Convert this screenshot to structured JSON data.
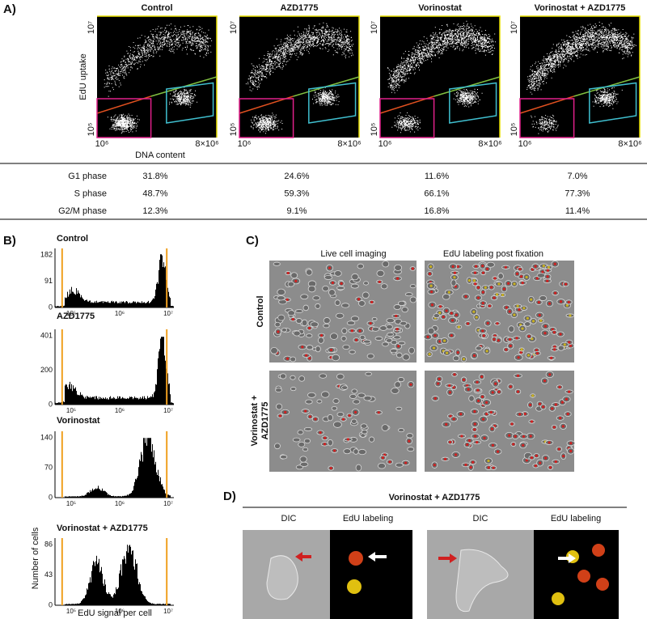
{
  "panel_a": {
    "label": "A)",
    "plots": [
      {
        "title": "Control"
      },
      {
        "title": "AZD1775"
      },
      {
        "title": "Vorinostat"
      },
      {
        "title": "Vorinostat + AZD1775"
      }
    ],
    "y_axis_label": "EdU uptake",
    "y_ticks": [
      "10⁷",
      "10⁵"
    ],
    "x_ticks": [
      "10⁶",
      "8×10⁶"
    ],
    "x_axis_label": "DNA content",
    "table": {
      "rows": [
        [
          "G1 phase",
          "31.8%",
          "24.6%",
          "11.6%",
          "7.0%"
        ],
        [
          "S phase",
          "48.7%",
          "59.3%",
          "66.1%",
          "77.3%"
        ],
        [
          "G2/M phase",
          "12.3%",
          "9.1%",
          "16.8%",
          "11.4%"
        ]
      ]
    }
  },
  "panel_b": {
    "label": "B)",
    "histograms": [
      {
        "title": "Control",
        "y_ticks": [
          182,
          91,
          0
        ]
      },
      {
        "title": "AZD1775",
        "y_ticks": [
          401,
          200,
          0
        ]
      },
      {
        "title": "Vorinostat",
        "y_ticks": [
          140,
          70,
          0
        ]
      },
      {
        "title": "Vorinostat + AZD1775",
        "y_ticks": [
          86,
          43,
          0
        ]
      }
    ],
    "x_ticks": [
      "10⁵",
      "10⁶",
      "10⁷"
    ],
    "y_axis_label": "Number of cells",
    "x_axis_label": "EdU signal per cell"
  },
  "panel_c": {
    "label": "C)",
    "columns": [
      "Live cell imaging",
      "EdU labeling post fixation"
    ],
    "rows": [
      [
        "Control"
      ],
      [
        "Vorinostat +",
        "AZD1775"
      ]
    ]
  },
  "panel_d": {
    "label": "D)",
    "title": "Vorinostat + AZD1775",
    "subtitles": [
      "DIC",
      "EdU labeling",
      "DIC",
      "EdU labeling"
    ]
  }
}
